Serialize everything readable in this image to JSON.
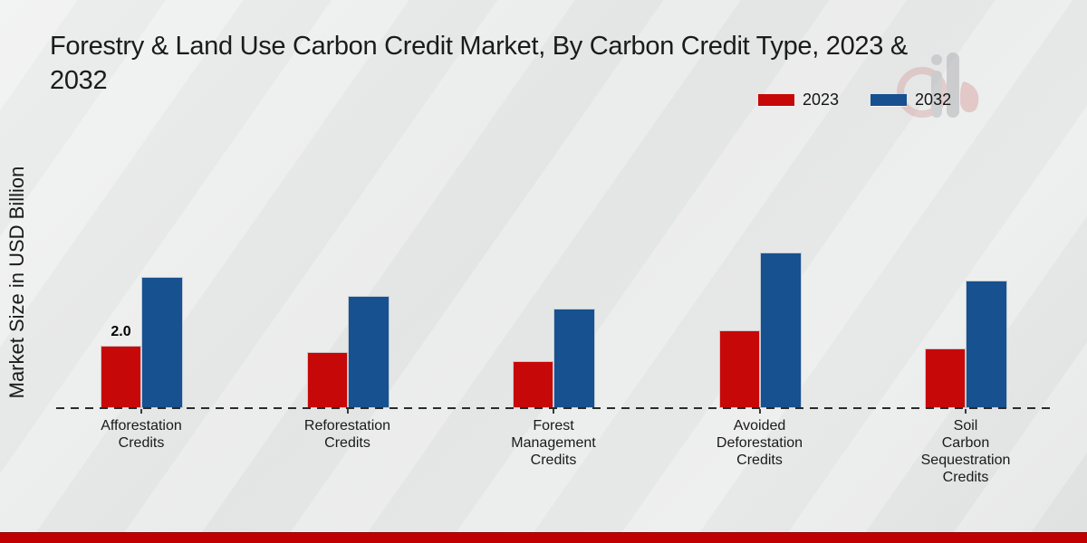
{
  "title": {
    "line1": "Forestry & Land Use Carbon Credit Market, By Carbon Credit Type, 2023 &",
    "line2": "2032",
    "full": "Forestry & Land Use Carbon Credit Market, By Carbon Credit Type, 2023 & 2032"
  },
  "y_axis_label": "Market Size in USD Billion",
  "colors": {
    "series_2023": "#c70808",
    "series_2032": "#17518f",
    "bottom_strip": "#c00000",
    "background": "#e9eaea",
    "baseline": "#2b2b2b"
  },
  "watermark_icon": "market-research-logo-watermark",
  "chart_data": {
    "type": "bar",
    "title": "Forestry & Land Use Carbon Credit Market, By Carbon Credit Type, 2023 & 2032",
    "xlabel": "",
    "ylabel": "Market Size in USD Billion",
    "ylim": [
      0,
      6
    ],
    "grid": false,
    "legend_position": "top-right",
    "categories": [
      "Afforestation Credits",
      "Reforestation Credits",
      "Forest Management Credits",
      "Avoided Deforestation Credits",
      "Soil Carbon Sequestration Credits"
    ],
    "category_label_lines": [
      [
        "Afforestation",
        "Credits"
      ],
      [
        "Reforestation",
        "Credits"
      ],
      [
        "Forest",
        "Management",
        "Credits"
      ],
      [
        "Avoided",
        "Deforestation",
        "Credits"
      ],
      [
        "Soil",
        "Carbon",
        "Sequestration",
        "Credits"
      ]
    ],
    "series": [
      {
        "name": "2023",
        "color": "#c70808",
        "values": [
          2.0,
          1.8,
          1.5,
          2.5,
          1.9
        ],
        "data_labels": [
          "2.0",
          "",
          "",
          "",
          ""
        ]
      },
      {
        "name": "2032",
        "color": "#17518f",
        "values": [
          4.2,
          3.6,
          3.2,
          5.0,
          4.1
        ],
        "data_labels": [
          "",
          "",
          "",
          "",
          ""
        ]
      }
    ]
  }
}
